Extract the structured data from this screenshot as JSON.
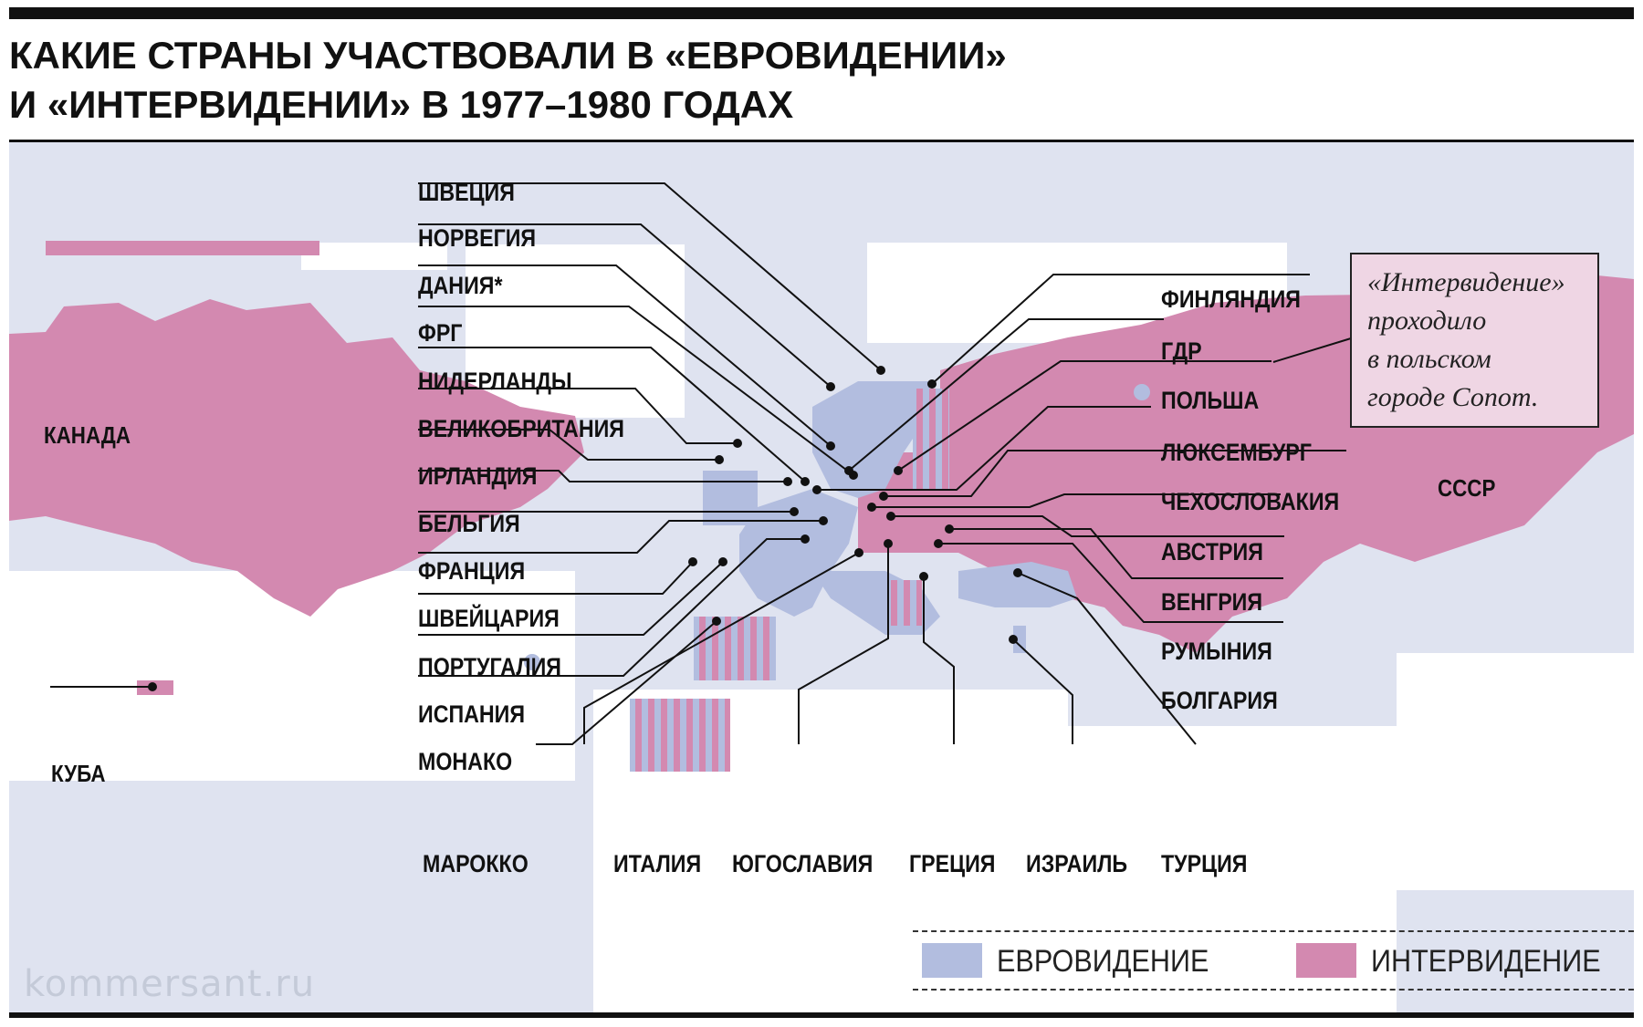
{
  "title": {
    "line1": "КАКИЕ СТРАНЫ УЧАСТВОВАЛИ В «ЕВРОВИДЕНИИ»",
    "line2": "И «ИНТЕРВИДЕНИИ» В 1977–1980 ГОДАХ"
  },
  "colors": {
    "background": "#dfe3f0",
    "land": "#ffffff",
    "eurovision": "#b2bddf",
    "intervision": "#d389b0",
    "callout": "#efd6e4"
  },
  "regions": {
    "canada": "КАНАДА",
    "cuba": "КУБА",
    "ussr": "СССР"
  },
  "countries_left": [
    {
      "name": "ШВЕЦИЯ",
      "contest": "eurovision"
    },
    {
      "name": "НОРВЕГИЯ",
      "contest": "eurovision"
    },
    {
      "name": "ДАНИЯ*",
      "contest": "eurovision"
    },
    {
      "name": "ФРГ",
      "contest": "eurovision"
    },
    {
      "name": "НИДЕРЛАНДЫ",
      "contest": "eurovision"
    },
    {
      "name": "ВЕЛИКОБРИТАНИЯ",
      "contest": "eurovision"
    },
    {
      "name": "ИРЛАНДИЯ",
      "contest": "eurovision"
    },
    {
      "name": "БЕЛЬГИЯ",
      "contest": "eurovision"
    },
    {
      "name": "ФРАНЦИЯ",
      "contest": "eurovision"
    },
    {
      "name": "ШВЕЙЦАРИЯ",
      "contest": "eurovision"
    },
    {
      "name": "ПОРТУГАЛИЯ",
      "contest": "eurovision"
    },
    {
      "name": "ИСПАНИЯ",
      "contest": "eurovision"
    },
    {
      "name": "МОНАКО",
      "contest": "eurovision"
    }
  ],
  "countries_right": [
    {
      "name": "ФИНЛЯНДИЯ",
      "contest": "both"
    },
    {
      "name": "ГДР",
      "contest": "intervision"
    },
    {
      "name": "ПОЛЬША",
      "contest": "intervision"
    },
    {
      "name": "ЛЮКСЕМБУРГ",
      "contest": "eurovision"
    },
    {
      "name": "ЧЕХОСЛОВАКИЯ",
      "contest": "intervision"
    },
    {
      "name": "АВСТРИЯ",
      "contest": "eurovision"
    },
    {
      "name": "ВЕНГРИЯ",
      "contest": "intervision"
    },
    {
      "name": "РУМЫНИЯ",
      "contest": "intervision"
    },
    {
      "name": "БОЛГАРИЯ",
      "contest": "intervision"
    }
  ],
  "countries_bottom": [
    {
      "name": "МАРОККО",
      "contest": "both"
    },
    {
      "name": "ИТАЛИЯ",
      "contest": "eurovision"
    },
    {
      "name": "ЮГОСЛАВИЯ",
      "contest": "both"
    },
    {
      "name": "ГРЕЦИЯ",
      "contest": "eurovision"
    },
    {
      "name": "ИЗРАИЛЬ",
      "contest": "eurovision"
    },
    {
      "name": "ТУРЦИЯ",
      "contest": "eurovision"
    }
  ],
  "callout": {
    "text_line1": "«Интервидение»",
    "text_line2": "проходило",
    "text_line3": "в польском",
    "text_line4": "городе Сопот."
  },
  "legend": {
    "eurovision": "ЕВРОВИДЕНИЕ",
    "intervision": "ИНТЕРВИДЕНИЕ"
  },
  "watermark": "kommersant.ru"
}
